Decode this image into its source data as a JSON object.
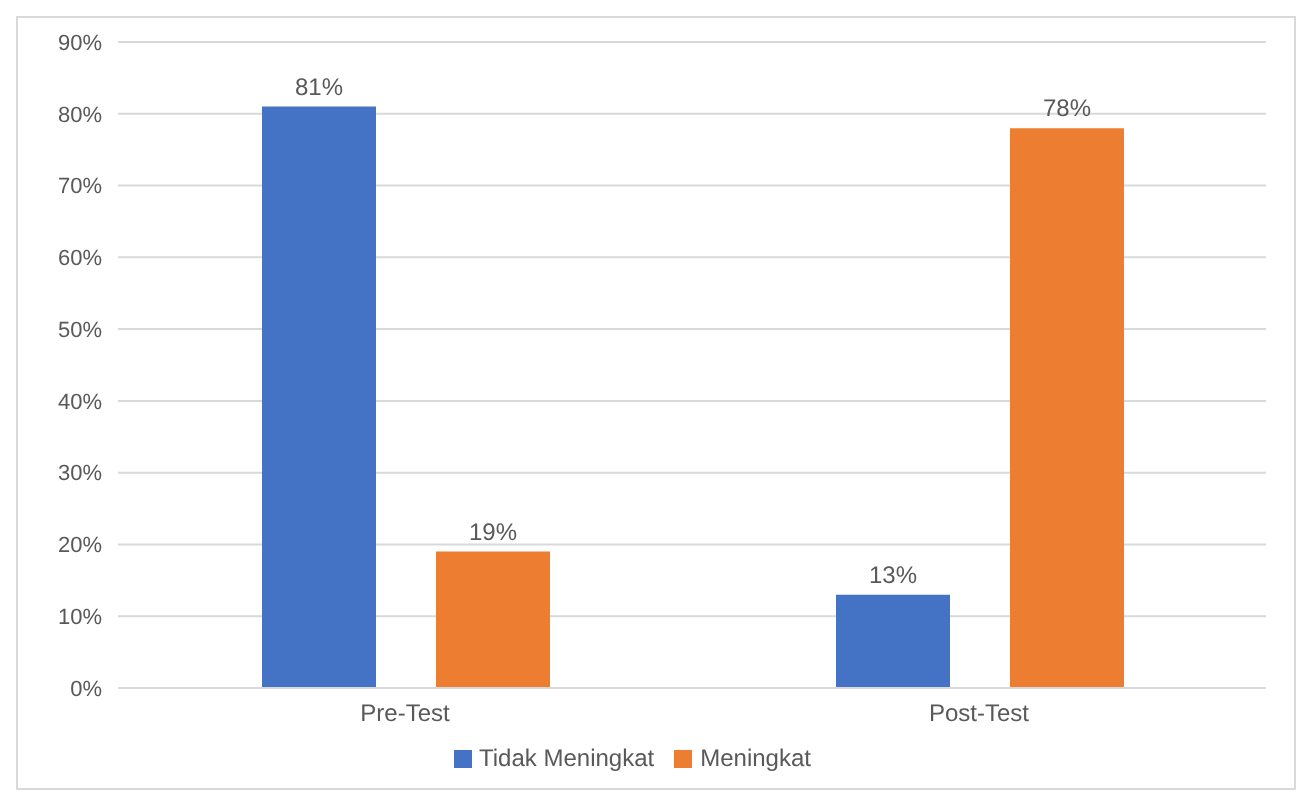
{
  "chart_data": {
    "type": "bar",
    "categories": [
      "Pre-Test",
      "Post-Test"
    ],
    "series": [
      {
        "name": "Tidak Meningkat",
        "color": "#4472c4",
        "values": [
          81,
          13
        ],
        "value_labels": [
          "81%",
          "13%"
        ]
      },
      {
        "name": "Meningkat",
        "color": "#ed7d31",
        "values": [
          19,
          78
        ],
        "value_labels": [
          "19%",
          "78%"
        ]
      }
    ],
    "ylim": [
      0,
      90
    ],
    "yticks": [
      {
        "value": 0,
        "label": "0%"
      },
      {
        "value": 10,
        "label": "10%"
      },
      {
        "value": 20,
        "label": "20%"
      },
      {
        "value": 30,
        "label": "30%"
      },
      {
        "value": 40,
        "label": "40%"
      },
      {
        "value": 50,
        "label": "50%"
      },
      {
        "value": 60,
        "label": "60%"
      },
      {
        "value": 70,
        "label": "70%"
      },
      {
        "value": 80,
        "label": "80%"
      },
      {
        "value": 90,
        "label": "90%"
      }
    ],
    "grid": "y",
    "legend": "bottom"
  }
}
